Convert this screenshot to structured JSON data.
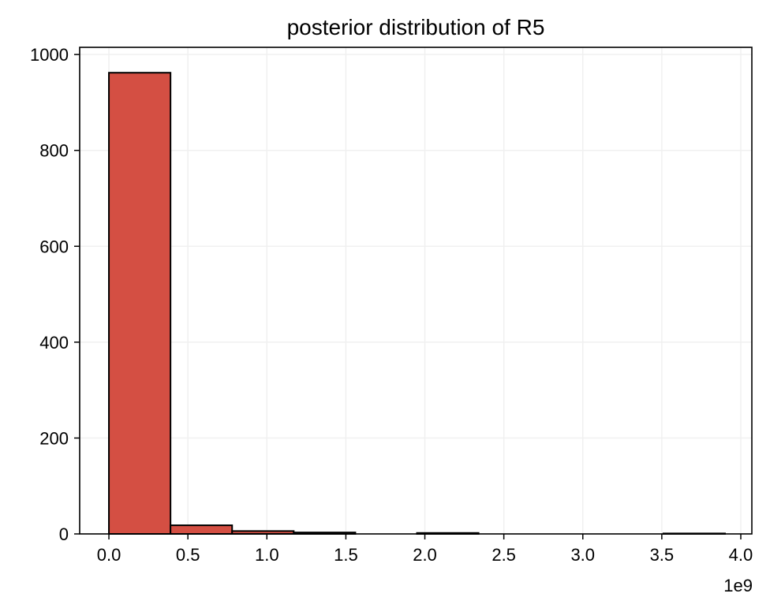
{
  "chart_data": {
    "type": "bar",
    "title": "posterior distribution of R5",
    "xlabel": "",
    "ylabel": "",
    "x_offset_label": "1e9",
    "xlim": [
      -0.185,
      4.07
    ],
    "ylim": [
      0,
      1015
    ],
    "xticks": [
      0.0,
      0.5,
      1.0,
      1.5,
      2.0,
      2.5,
      3.0,
      3.5,
      4.0
    ],
    "xtick_labels": [
      "0.0",
      "0.5",
      "1.0",
      "1.5",
      "2.0",
      "2.5",
      "3.0",
      "3.5",
      "4.0"
    ],
    "yticks": [
      0,
      200,
      400,
      600,
      800,
      1000
    ],
    "ytick_labels": [
      "0",
      "200",
      "400",
      "600",
      "800",
      "1000"
    ],
    "grid": true,
    "bar_color": "#d44f43",
    "edge_color": "#000000",
    "bins": [
      {
        "x0": 0.0,
        "x1": 0.39,
        "count": 962
      },
      {
        "x0": 0.39,
        "x1": 0.78,
        "count": 18
      },
      {
        "x0": 0.78,
        "x1": 1.17,
        "count": 6
      },
      {
        "x0": 1.17,
        "x1": 1.56,
        "count": 3
      },
      {
        "x0": 1.56,
        "x1": 1.95,
        "count": 0
      },
      {
        "x0": 1.95,
        "x1": 2.34,
        "count": 2
      },
      {
        "x0": 2.34,
        "x1": 2.73,
        "count": 0
      },
      {
        "x0": 2.73,
        "x1": 3.12,
        "count": 0
      },
      {
        "x0": 3.12,
        "x1": 3.51,
        "count": 0
      },
      {
        "x0": 3.51,
        "x1": 3.9,
        "count": 1
      }
    ]
  }
}
